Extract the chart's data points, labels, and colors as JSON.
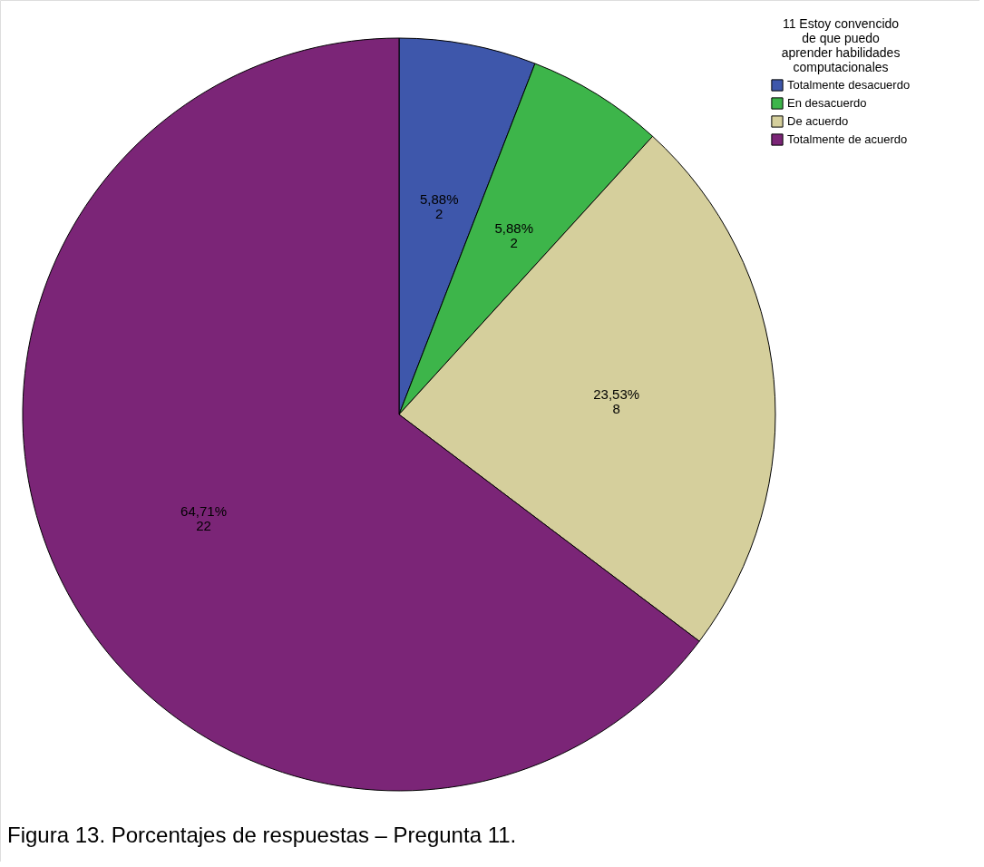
{
  "chart_data": {
    "type": "pie",
    "legend_title": "11 Estoy convencido\nde que puedo\naprender habilidades\ncomputacionales",
    "categories": [
      "Totalmente desacuerdo",
      "En desacuerdo",
      "De acuerdo",
      "Totalmente de acuerdo"
    ],
    "values": [
      2,
      2,
      8,
      22
    ],
    "value_labels": [
      "5,88%\n2",
      "5,88%\n2",
      "23,53%\n8",
      "64,71%\n22"
    ],
    "colors": [
      "#3e57ab",
      "#3db54a",
      "#d5cf9c",
      "#7b2577"
    ],
    "legend": "top right",
    "annotations": [
      "Figura 13. Porcentajes de respuestas – Pregunta 11."
    ]
  }
}
